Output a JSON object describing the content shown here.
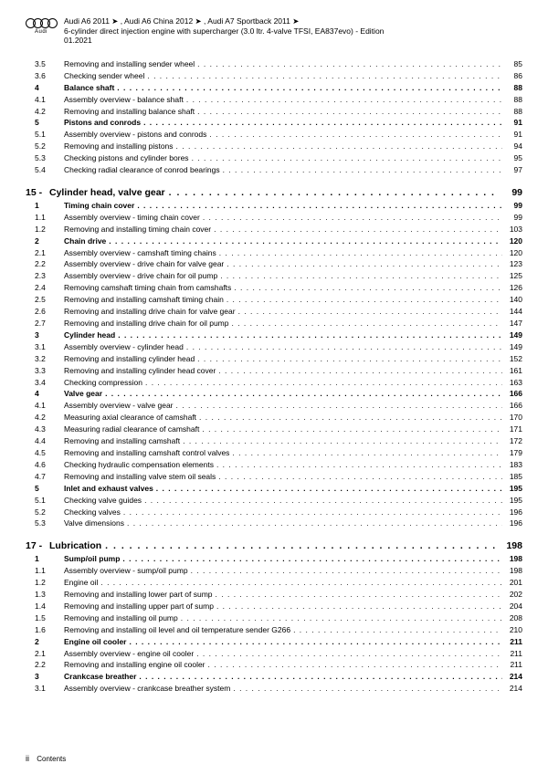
{
  "header": {
    "vehicles": "Audi A6 2011 ➤ , Audi A6 China 2012 ➤ , Audi A7 Sportback 2011 ➤",
    "engine": "6-cylinder direct injection engine with supercharger (3.0 ltr. 4-valve TFSI, EA837evo) - Edition",
    "edition": "01.2021",
    "logo_text": "Audi"
  },
  "footer": {
    "page_roman": "ii",
    "label": "Contents"
  },
  "pre": [
    {
      "n": "3.5",
      "t": "Removing and installing sender wheel",
      "p": "85",
      "b": false
    },
    {
      "n": "3.6",
      "t": "Checking sender wheel",
      "p": "86",
      "b": false
    },
    {
      "n": "4",
      "t": "Balance shaft",
      "p": "88",
      "b": true
    },
    {
      "n": "4.1",
      "t": "Assembly overview - balance shaft",
      "p": "88",
      "b": false
    },
    {
      "n": "4.2",
      "t": "Removing and installing balance shaft",
      "p": "88",
      "b": false
    },
    {
      "n": "5",
      "t": "Pistons and conrods",
      "p": "91",
      "b": true
    },
    {
      "n": "5.1",
      "t": "Assembly overview - pistons and conrods",
      "p": "91",
      "b": false
    },
    {
      "n": "5.2",
      "t": "Removing and installing pistons",
      "p": "94",
      "b": false
    },
    {
      "n": "5.3",
      "t": "Checking pistons and cylinder bores",
      "p": "95",
      "b": false
    },
    {
      "n": "5.4",
      "t": "Checking radial clearance of conrod bearings",
      "p": "97",
      "b": false
    }
  ],
  "chapters": [
    {
      "num": "15",
      "dash": "-",
      "title": "Cylinder head, valve gear",
      "pg": "99",
      "rows": [
        {
          "n": "1",
          "t": "Timing chain cover",
          "p": "99",
          "b": true
        },
        {
          "n": "1.1",
          "t": "Assembly overview - timing chain cover",
          "p": "99",
          "b": false
        },
        {
          "n": "1.2",
          "t": "Removing and installing timing chain cover",
          "p": "103",
          "b": false
        },
        {
          "n": "2",
          "t": "Chain drive",
          "p": "120",
          "b": true
        },
        {
          "n": "2.1",
          "t": "Assembly overview - camshaft timing chains",
          "p": "120",
          "b": false
        },
        {
          "n": "2.2",
          "t": "Assembly overview - drive chain for valve gear",
          "p": "123",
          "b": false
        },
        {
          "n": "2.3",
          "t": "Assembly overview - drive chain for oil pump",
          "p": "125",
          "b": false
        },
        {
          "n": "2.4",
          "t": "Removing camshaft timing chain from camshafts",
          "p": "126",
          "b": false
        },
        {
          "n": "2.5",
          "t": "Removing and installing camshaft timing chain",
          "p": "140",
          "b": false
        },
        {
          "n": "2.6",
          "t": "Removing and installing drive chain for valve gear",
          "p": "144",
          "b": false
        },
        {
          "n": "2.7",
          "t": "Removing and installing drive chain for oil pump",
          "p": "147",
          "b": false
        },
        {
          "n": "3",
          "t": "Cylinder head",
          "p": "149",
          "b": true
        },
        {
          "n": "3.1",
          "t": "Assembly overview - cylinder head",
          "p": "149",
          "b": false
        },
        {
          "n": "3.2",
          "t": "Removing and installing cylinder head",
          "p": "152",
          "b": false
        },
        {
          "n": "3.3",
          "t": "Removing and installing cylinder head cover",
          "p": "161",
          "b": false
        },
        {
          "n": "3.4",
          "t": "Checking compression",
          "p": "163",
          "b": false
        },
        {
          "n": "4",
          "t": "Valve gear",
          "p": "166",
          "b": true
        },
        {
          "n": "4.1",
          "t": "Assembly overview - valve gear",
          "p": "166",
          "b": false
        },
        {
          "n": "4.2",
          "t": "Measuring axial clearance of camshaft",
          "p": "170",
          "b": false
        },
        {
          "n": "4.3",
          "t": "Measuring radial clearance of camshaft",
          "p": "171",
          "b": false
        },
        {
          "n": "4.4",
          "t": "Removing and installing camshaft",
          "p": "172",
          "b": false
        },
        {
          "n": "4.5",
          "t": "Removing and installing camshaft control valves",
          "p": "179",
          "b": false
        },
        {
          "n": "4.6",
          "t": "Checking hydraulic compensation elements",
          "p": "183",
          "b": false
        },
        {
          "n": "4.7",
          "t": "Removing and installing valve stem oil seals",
          "p": "185",
          "b": false
        },
        {
          "n": "5",
          "t": "Inlet and exhaust valves",
          "p": "195",
          "b": true
        },
        {
          "n": "5.1",
          "t": "Checking valve guides",
          "p": "195",
          "b": false
        },
        {
          "n": "5.2",
          "t": "Checking valves",
          "p": "196",
          "b": false
        },
        {
          "n": "5.3",
          "t": "Valve dimensions",
          "p": "196",
          "b": false
        }
      ]
    },
    {
      "num": "17",
      "dash": "-",
      "title": "Lubrication",
      "pg": "198",
      "rows": [
        {
          "n": "1",
          "t": "Sump/oil pump",
          "p": "198",
          "b": true
        },
        {
          "n": "1.1",
          "t": "Assembly overview - sump/oil pump",
          "p": "198",
          "b": false
        },
        {
          "n": "1.2",
          "t": "Engine oil",
          "p": "201",
          "b": false
        },
        {
          "n": "1.3",
          "t": "Removing and installing lower part of sump",
          "p": "202",
          "b": false
        },
        {
          "n": "1.4",
          "t": "Removing and installing upper part of sump",
          "p": "204",
          "b": false
        },
        {
          "n": "1.5",
          "t": "Removing and installing oil pump",
          "p": "208",
          "b": false
        },
        {
          "n": "1.6",
          "t": "Removing and installing oil level and oil temperature sender G266",
          "p": "210",
          "b": false
        },
        {
          "n": "2",
          "t": "Engine oil cooler",
          "p": "211",
          "b": true
        },
        {
          "n": "2.1",
          "t": "Assembly overview - engine oil cooler",
          "p": "211",
          "b": false
        },
        {
          "n": "2.2",
          "t": "Removing and installing engine oil cooler",
          "p": "211",
          "b": false
        },
        {
          "n": "3",
          "t": "Crankcase breather",
          "p": "214",
          "b": true
        },
        {
          "n": "3.1",
          "t": "Assembly overview - crankcase breather system",
          "p": "214",
          "b": false
        }
      ]
    }
  ]
}
